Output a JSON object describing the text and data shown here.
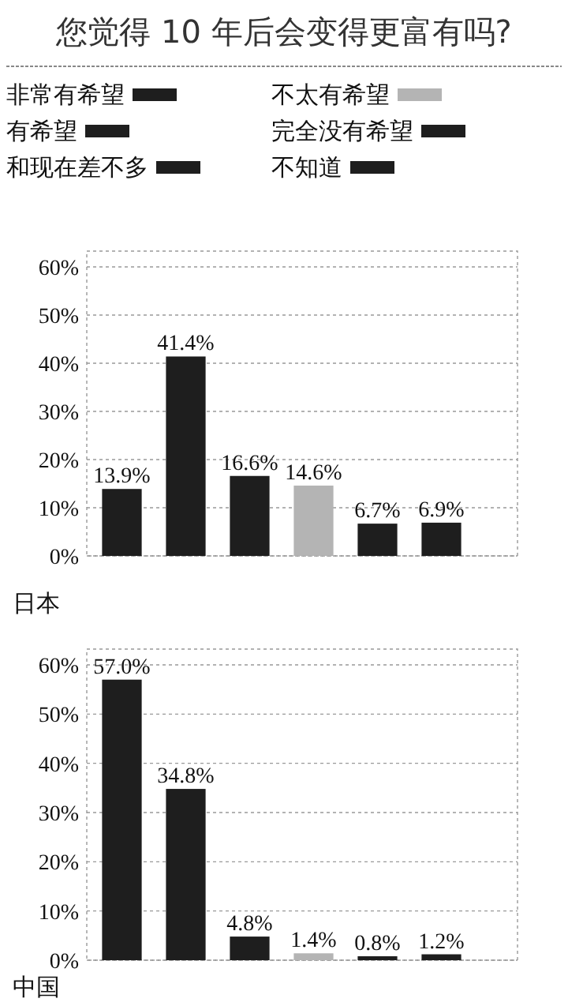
{
  "chart_data": [
    {
      "type": "bar",
      "title": "您觉得 10 年后会变得更富有吗?",
      "xlabel": "日本",
      "categories": [
        null
      ],
      "series": [
        {
          "name": "非常有希望",
          "color": "#1e1e1e",
          "values": [
            13.9
          ],
          "value_labels": [
            "13.9%"
          ]
        },
        {
          "name": "有希望",
          "color": "#1e1e1e",
          "values": [
            41.4
          ],
          "value_labels": [
            "41.4%"
          ]
        },
        {
          "name": "和现在差不多",
          "color": "#1e1e1e",
          "values": [
            16.6
          ],
          "value_labels": [
            "16.6%"
          ]
        },
        {
          "name": "不太有希望",
          "color": "#b4b4b4",
          "values": [
            14.6
          ],
          "value_labels": [
            "14.6%"
          ]
        },
        {
          "name": "完全没有希望",
          "color": "#1e1e1e",
          "values": [
            6.7
          ],
          "value_labels": [
            "6.7%"
          ]
        },
        {
          "name": "不知道",
          "color": "#1e1e1e",
          "values": [
            6.9
          ],
          "value_labels": [
            "6.9%"
          ]
        }
      ],
      "ylim": [
        0,
        60
      ],
      "yticks": [
        {
          "value": 0,
          "label": "0%"
        },
        {
          "value": 10,
          "label": "10%"
        },
        {
          "value": 20,
          "label": "20%"
        },
        {
          "value": 30,
          "label": "30%"
        },
        {
          "value": 40,
          "label": "40%"
        },
        {
          "value": 50,
          "label": "50%"
        },
        {
          "value": 60,
          "label": "60%"
        }
      ],
      "grid": "y",
      "legend": "top"
    },
    {
      "type": "bar",
      "xlabel": "中国",
      "categories": [
        null
      ],
      "series": [
        {
          "color": "#1e1e1e",
          "values": [
            57.0
          ],
          "value_labels": [
            "57.0%"
          ]
        },
        {
          "color": "#1e1e1e",
          "values": [
            34.8
          ],
          "value_labels": [
            "34.8%"
          ]
        },
        {
          "color": "#1e1e1e",
          "values": [
            4.8
          ],
          "value_labels": [
            "4.8%"
          ]
        },
        {
          "color": "#b4b4b4",
          "values": [
            1.4
          ],
          "value_labels": [
            "1.4%"
          ]
        },
        {
          "color": "#1e1e1e",
          "values": [
            0.8
          ],
          "value_labels": [
            "0.8%"
          ]
        },
        {
          "color": "#1e1e1e",
          "values": [
            1.2
          ],
          "value_labels": [
            "1.2%"
          ]
        }
      ],
      "ylim": [
        0,
        60
      ],
      "yticks": [
        {
          "value": 0,
          "label": "0%"
        },
        {
          "value": 10,
          "label": "10%"
        },
        {
          "value": 20,
          "label": "20%"
        },
        {
          "value": 30,
          "label": "30%"
        },
        {
          "value": 40,
          "label": "40%"
        },
        {
          "value": 50,
          "label": "50%"
        },
        {
          "value": 60,
          "label": "60%"
        }
      ],
      "grid": "y"
    }
  ]
}
